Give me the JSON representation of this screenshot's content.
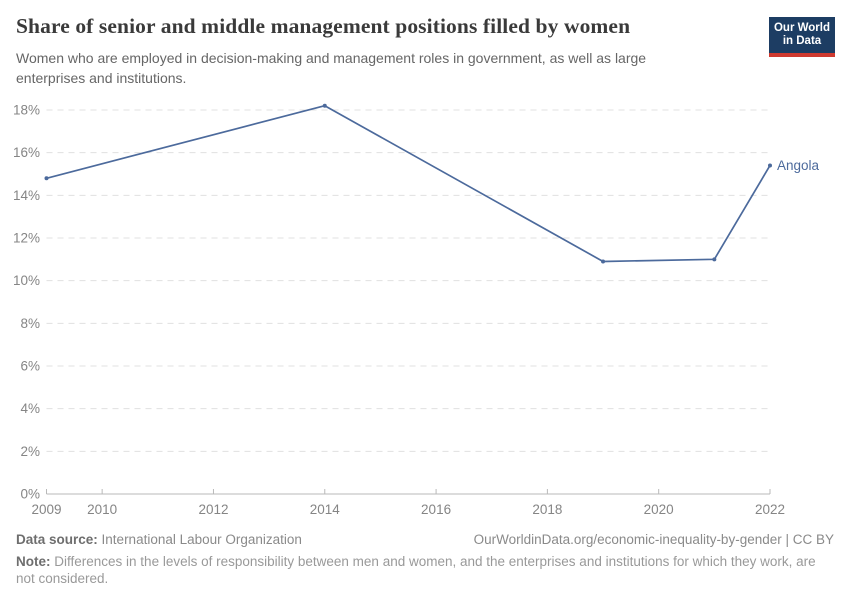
{
  "header": {
    "title": "Share of senior and middle management positions filled by women",
    "subtitle": "Women who are employed in decision-making and management roles in government, as well as large enterprises and institutions.",
    "logo": {
      "line1": "Our World",
      "line2": "in Data",
      "bg_color": "#1d3d63",
      "stripe_color": "#cf3a30"
    }
  },
  "chart_data": {
    "type": "line",
    "title": "Share of senior and middle management positions filled by women",
    "xlabel": "",
    "ylabel": "",
    "xlim": [
      2009,
      2022
    ],
    "ylim": [
      0,
      18
    ],
    "x_ticks": [
      2009,
      2010,
      2012,
      2014,
      2016,
      2018,
      2020,
      2022
    ],
    "y_ticks": [
      0,
      2,
      4,
      6,
      8,
      10,
      12,
      14,
      16,
      18
    ],
    "y_tick_suffix": "%",
    "grid": true,
    "legend_position": "end-of-line-label",
    "line_color": "#4c6a9c",
    "grid_color": "#e0e0e0",
    "axis_color": "#b9b9b9",
    "series": [
      {
        "name": "Angola",
        "x": [
          2009,
          2014,
          2019,
          2021,
          2022
        ],
        "y": [
          14.8,
          18.2,
          10.9,
          11.0,
          15.4
        ]
      }
    ]
  },
  "footer": {
    "source_label": "Data source:",
    "source_value": "International Labour Organization",
    "attribution": "OurWorldinData.org/economic-inequality-by-gender | CC BY",
    "note_label": "Note:",
    "note_value": "Differences in the levels of responsibility between men and women, and the enterprises and institutions for which they work, are not considered."
  }
}
